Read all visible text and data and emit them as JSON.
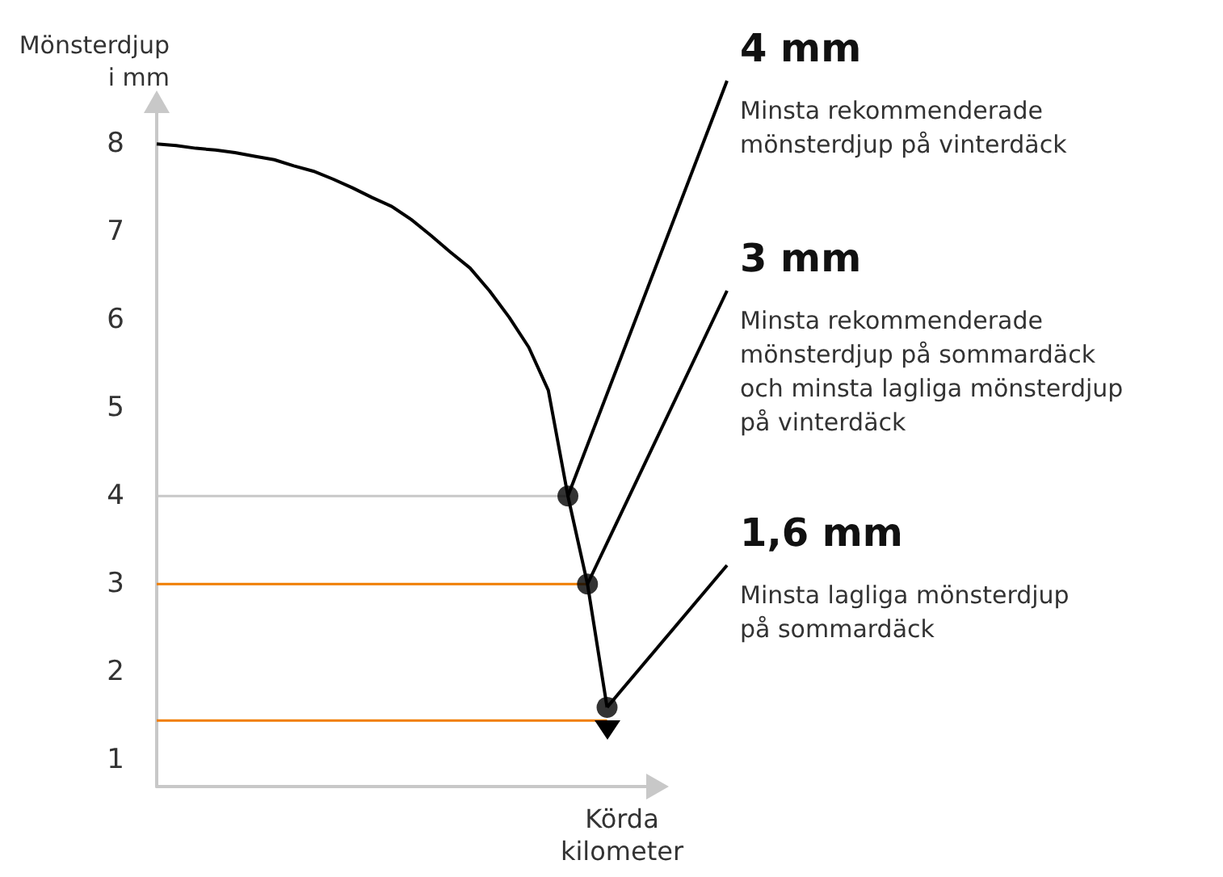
{
  "chart_data": {
    "type": "line",
    "xlabel": "Körda\nkilometer",
    "ylabel": "Mönsterdjup\ni mm",
    "categories": [
      null,
      null,
      null,
      null,
      null,
      null,
      null,
      null,
      null,
      null,
      null,
      null,
      null,
      null,
      null,
      null,
      null,
      null,
      null,
      null,
      null,
      null,
      null,
      null,
      null,
      null
    ],
    "ylim": [
      0.7,
      8.35
    ],
    "yticks": [
      1,
      2,
      3,
      4,
      5,
      6,
      7,
      8
    ],
    "grid": false,
    "line_style": "solid",
    "series": [
      {
        "color": "#000000",
        "values": [
          8,
          7.98,
          7.95,
          7.93,
          7.9,
          7.86,
          7.82,
          7.75,
          7.69,
          7.6,
          7.5,
          7.39,
          7.29,
          7.14,
          6.96,
          6.77,
          6.59,
          6.33,
          6.03,
          5.69,
          5.2,
          4,
          3,
          1.6,
          null,
          null
        ]
      },
      {
        "color": "#c8c8c8",
        "values": [
          4,
          4,
          4,
          4,
          4,
          4,
          4,
          4,
          4,
          4,
          4,
          4,
          4,
          4,
          4,
          4,
          4,
          4,
          4,
          4,
          4,
          4,
          null,
          null,
          null,
          null
        ]
      },
      {
        "color": "#f07d00",
        "values": [
          3,
          3,
          3,
          3,
          3,
          3,
          3,
          3,
          3,
          3,
          3,
          3,
          3,
          3,
          3,
          3,
          3,
          3,
          3,
          3,
          3,
          3,
          3,
          null,
          null,
          null
        ]
      },
      {
        "color": "#f07d00",
        "values": [
          1.45,
          1.45,
          1.45,
          1.45,
          1.45,
          1.45,
          1.45,
          1.45,
          1.45,
          1.45,
          1.45,
          1.45,
          1.45,
          1.45,
          1.45,
          1.45,
          1.45,
          1.45,
          1.45,
          1.45,
          1.45,
          1.45,
          1.45,
          1.45,
          null,
          null
        ]
      },
      {
        "type": "scatter",
        "marker": "circle",
        "color": "#000000",
        "values": [
          null,
          null,
          null,
          null,
          null,
          null,
          null,
          null,
          null,
          null,
          null,
          null,
          null,
          null,
          null,
          null,
          null,
          null,
          null,
          null,
          null,
          4,
          3,
          1.6,
          null,
          null
        ]
      }
    ],
    "annotations": [
      "4 mm\nMinsta rekommenderade\nmönsterdjup på vinterdäck",
      "3 mm\nMinsta rekommenderade\nmönsterdjup på sommardäck\noch minsta lagliga mönsterdjup\npå vinterdäck",
      "1,6 mm\nMinsta lagliga mönsterdjup\npå sommardäck"
    ]
  }
}
